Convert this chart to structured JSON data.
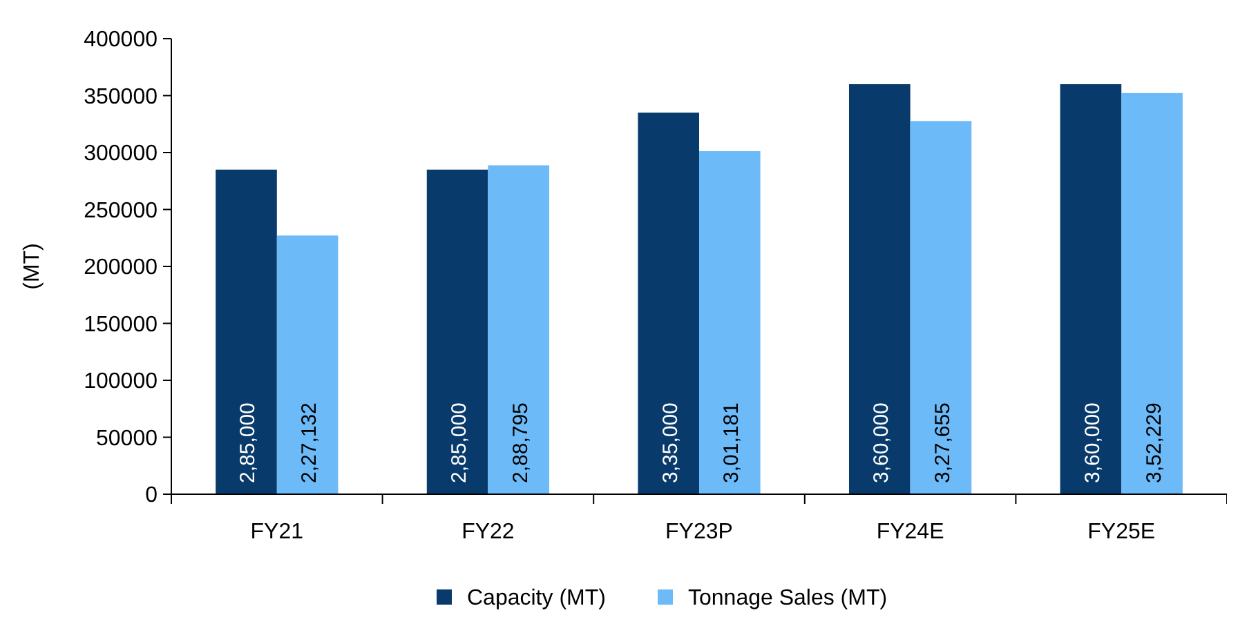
{
  "chart_data": {
    "type": "bar",
    "ylabel": "(MT)",
    "categories": [
      "FY21",
      "FY22",
      "FY23P",
      "FY24E",
      "FY25E"
    ],
    "series": [
      {
        "name": "Capacity (MT)",
        "color": "#083a6b",
        "values": [
          285000,
          285000,
          335000,
          360000,
          360000
        ],
        "value_labels": [
          "2,85,000",
          "2,85,000",
          "3,35,000",
          "3,60,000",
          "3,60,000"
        ]
      },
      {
        "name": "Tonnage Sales (MT)",
        "color": "#6dbaf8",
        "values": [
          227132,
          288795,
          301181,
          327655,
          352229
        ],
        "value_labels": [
          "2,27,132",
          "2,88,795",
          "3,01,181",
          "3,27,655",
          "3,52,229"
        ]
      }
    ],
    "ylim": [
      0,
      400000
    ],
    "yticks": [
      0,
      50000,
      100000,
      150000,
      200000,
      250000,
      300000,
      350000,
      400000
    ],
    "grid": false,
    "legend": "bottom"
  }
}
